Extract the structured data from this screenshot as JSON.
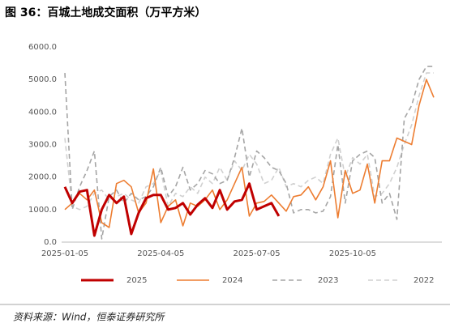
{
  "chart_data": {
    "type": "line",
    "title": "图 36：百城土地成交面积（万平方米）",
    "source": "资料来源：Wind，恒泰证券研究所",
    "categories": [
      "2025-01-05",
      null,
      null,
      null,
      null,
      null,
      null,
      null,
      null,
      null,
      null,
      null,
      null,
      "2025-04-05",
      null,
      null,
      null,
      null,
      null,
      null,
      null,
      null,
      null,
      null,
      null,
      null,
      "2025-07-05",
      null,
      null,
      null,
      null,
      null,
      null,
      null,
      null,
      null,
      null,
      null,
      null,
      "2025-10-05",
      null,
      null,
      null,
      null,
      null,
      null,
      null,
      null,
      null,
      null,
      null
    ],
    "ylim": [
      0,
      6000
    ],
    "yticks": [
      {
        "value": 0,
        "label": "0.0"
      },
      {
        "value": 1000,
        "label": "1000.0"
      },
      {
        "value": 2000,
        "label": "2000.0"
      },
      {
        "value": 3000,
        "label": "3000.0"
      },
      {
        "value": 4000,
        "label": "4000.0"
      },
      {
        "value": 5000,
        "label": "5000.0"
      },
      {
        "value": 6000,
        "label": "6000.0"
      }
    ],
    "legend": "bottom",
    "series": [
      {
        "name": "2025",
        "color": "#c00000",
        "width": 3,
        "dash": "none",
        "values": [
          1700,
          1200,
          1550,
          1600,
          200,
          1000,
          1450,
          1200,
          1400,
          250,
          900,
          1350,
          1450,
          1450,
          1000,
          1050,
          1200,
          850,
          1150,
          1350,
          1050,
          1600,
          1000,
          1250,
          1300,
          1800,
          1000,
          1100,
          1200,
          800,
          null,
          null,
          null,
          null,
          null,
          null,
          null,
          null,
          null,
          null,
          null,
          null,
          null,
          null,
          null,
          null,
          null,
          null,
          null,
          null,
          null
        ]
      },
      {
        "name": "2024",
        "color": "#ed7d31",
        "width": 1.6,
        "dash": "none",
        "values": [
          1000,
          1200,
          1500,
          1300,
          1600,
          600,
          450,
          1800,
          1900,
          1700,
          900,
          1200,
          2250,
          600,
          1100,
          1300,
          500,
          1200,
          1100,
          1300,
          1600,
          1000,
          1300,
          1800,
          2300,
          800,
          1200,
          1250,
          1450,
          1200,
          950,
          1400,
          1450,
          1700,
          1300,
          1700,
          2500,
          750,
          2200,
          1500,
          1600,
          2400,
          1200,
          2500,
          2500,
          3200,
          3100,
          3000,
          4200,
          5000,
          4450
        ]
      },
      {
        "name": "2023",
        "color": "#a5a5a5",
        "width": 1.6,
        "dash": "6,4",
        "values": [
          5200,
          1000,
          1700,
          2200,
          2800,
          100,
          1400,
          1600,
          1200,
          1500,
          1300,
          1400,
          1700,
          2300,
          1400,
          1700,
          2300,
          1600,
          1800,
          2200,
          2100,
          1800,
          1900,
          2600,
          3500,
          2000,
          2800,
          2600,
          2300,
          2200,
          1800,
          900,
          1000,
          1000,
          900,
          950,
          1400,
          3000,
          1200,
          2500,
          2700,
          2800,
          2600,
          1200,
          1500,
          700,
          3800,
          4200,
          5000,
          5400,
          5400
        ]
      },
      {
        "name": "2022",
        "color": "#d0d0d0",
        "width": 1.6,
        "dash": "6,4",
        "values": [
          3200,
          1100,
          1000,
          1100,
          1500,
          1600,
          1300,
          1400,
          1500,
          1300,
          1200,
          1700,
          1800,
          2200,
          1100,
          1500,
          1400,
          1700,
          1500,
          2000,
          1800,
          2300,
          1900,
          2500,
          2200,
          2700,
          2400,
          1800,
          1900,
          2300,
          1700,
          1800,
          1700,
          1900,
          2000,
          1800,
          2700,
          3200,
          2000,
          2600,
          2400,
          2700,
          1400,
          1500,
          1800,
          2300,
          3000,
          3600,
          4500,
          5200,
          5200
        ]
      }
    ]
  }
}
